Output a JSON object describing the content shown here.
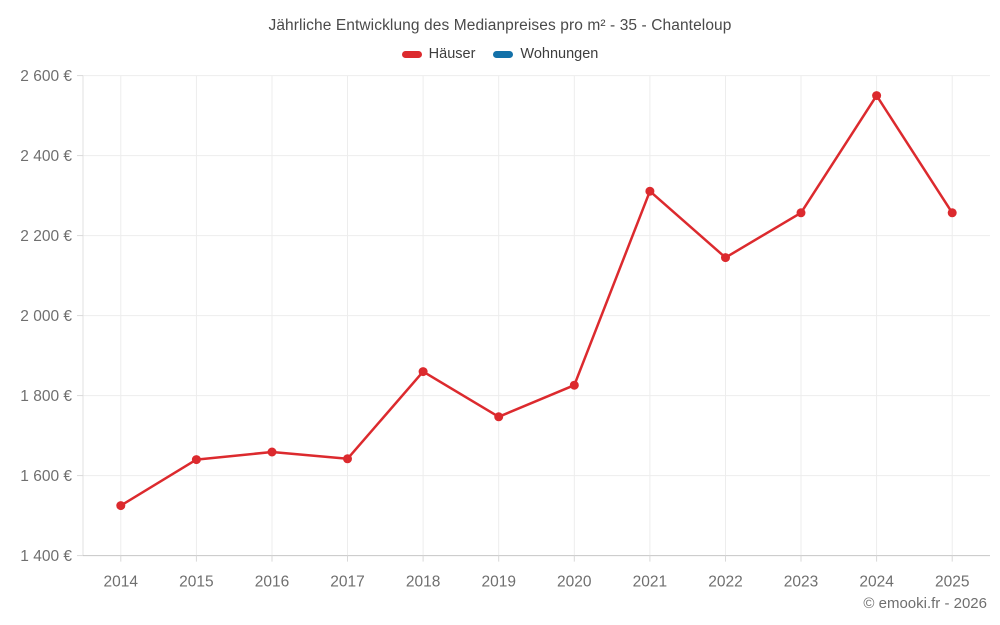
{
  "page": {
    "footer": "© emooki.fr - 2026"
  },
  "chart_data": {
    "type": "line",
    "title": "Jährliche Entwicklung des Medianpreises pro m² - 35 - Chanteloup",
    "xlabel": "",
    "ylabel": "",
    "x": [
      "2014",
      "2015",
      "2016",
      "2017",
      "2018",
      "2019",
      "2020",
      "2021",
      "2022",
      "2023",
      "2024",
      "2025"
    ],
    "series": [
      {
        "name": "Häuser",
        "color": "#dc2a2e",
        "values": [
          1525,
          1640,
          1659,
          1642,
          1860,
          1747,
          1826,
          2311,
          2145,
          2257,
          2550,
          2257
        ]
      },
      {
        "name": "Wohnungen",
        "color": "#1371a9",
        "values": []
      }
    ],
    "unit": "€",
    "ylim": [
      1400,
      2600
    ],
    "yticks": [
      {
        "value": 1400,
        "label": "1 400 €"
      },
      {
        "value": 1600,
        "label": "1 600 €"
      },
      {
        "value": 1800,
        "label": "1 800 €"
      },
      {
        "value": 2000,
        "label": "2 000 €"
      },
      {
        "value": 2200,
        "label": "2 200 €"
      },
      {
        "value": 2400,
        "label": "2 400 €"
      },
      {
        "value": 2600,
        "label": "2 600 €"
      }
    ],
    "grid": true,
    "legend_position": "top",
    "colors": {
      "grid": "#ededed",
      "left_axis": "#e2e2e2",
      "bottom_axis": "#c6c6c6",
      "tick": "#d9d9d9",
      "axis_label": "#6f6f6f",
      "title": "#4a4a4a",
      "legend_text": "#3d3d3d",
      "footer": "#6f6f6f"
    }
  }
}
